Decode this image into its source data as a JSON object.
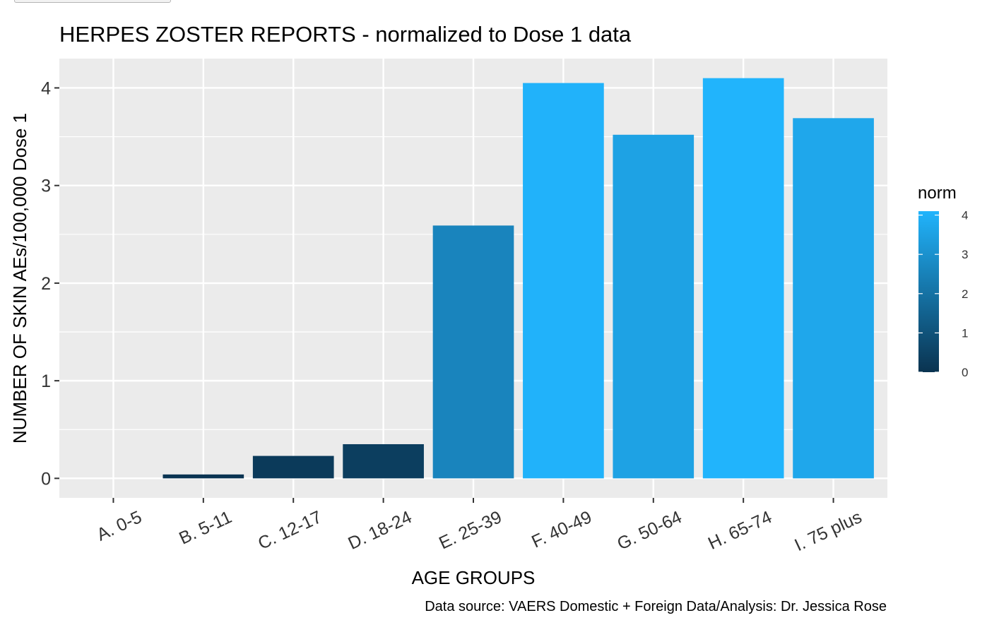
{
  "chart_data": {
    "type": "bar",
    "title": "HERPES ZOSTER REPORTS - normalized to Dose 1 data",
    "xlabel": "AGE GROUPS",
    "ylabel": "NUMBER OF SKIN AEs/100,000 Dose 1",
    "caption": "Data source: VAERS Domestic + Foreign Data/Analysis: Dr. Jessica Rose",
    "categories": [
      "A. 0-5",
      "B. 5-11",
      "C. 12-17",
      "D. 18-24",
      "E. 25-39",
      "F. 40-49",
      "G. 50-64",
      "H. 65-74",
      "I. 75 plus"
    ],
    "values": [
      0,
      0.04,
      0.23,
      0.35,
      2.59,
      4.05,
      3.52,
      4.1,
      3.69
    ],
    "yticks": [
      "0",
      "1",
      "2",
      "3",
      "4"
    ],
    "ylim": [
      -0.2,
      4.3
    ],
    "grid": true,
    "legend": {
      "title": "norm",
      "placement": "right",
      "labels": [
        "0",
        "1",
        "2",
        "3",
        "4"
      ],
      "range": [
        0,
        4.1
      ],
      "color_low": "#0a3350",
      "color_high": "#21b4fc"
    },
    "panel_background": "#ebebeb",
    "grid_color": "#ffffff"
  }
}
